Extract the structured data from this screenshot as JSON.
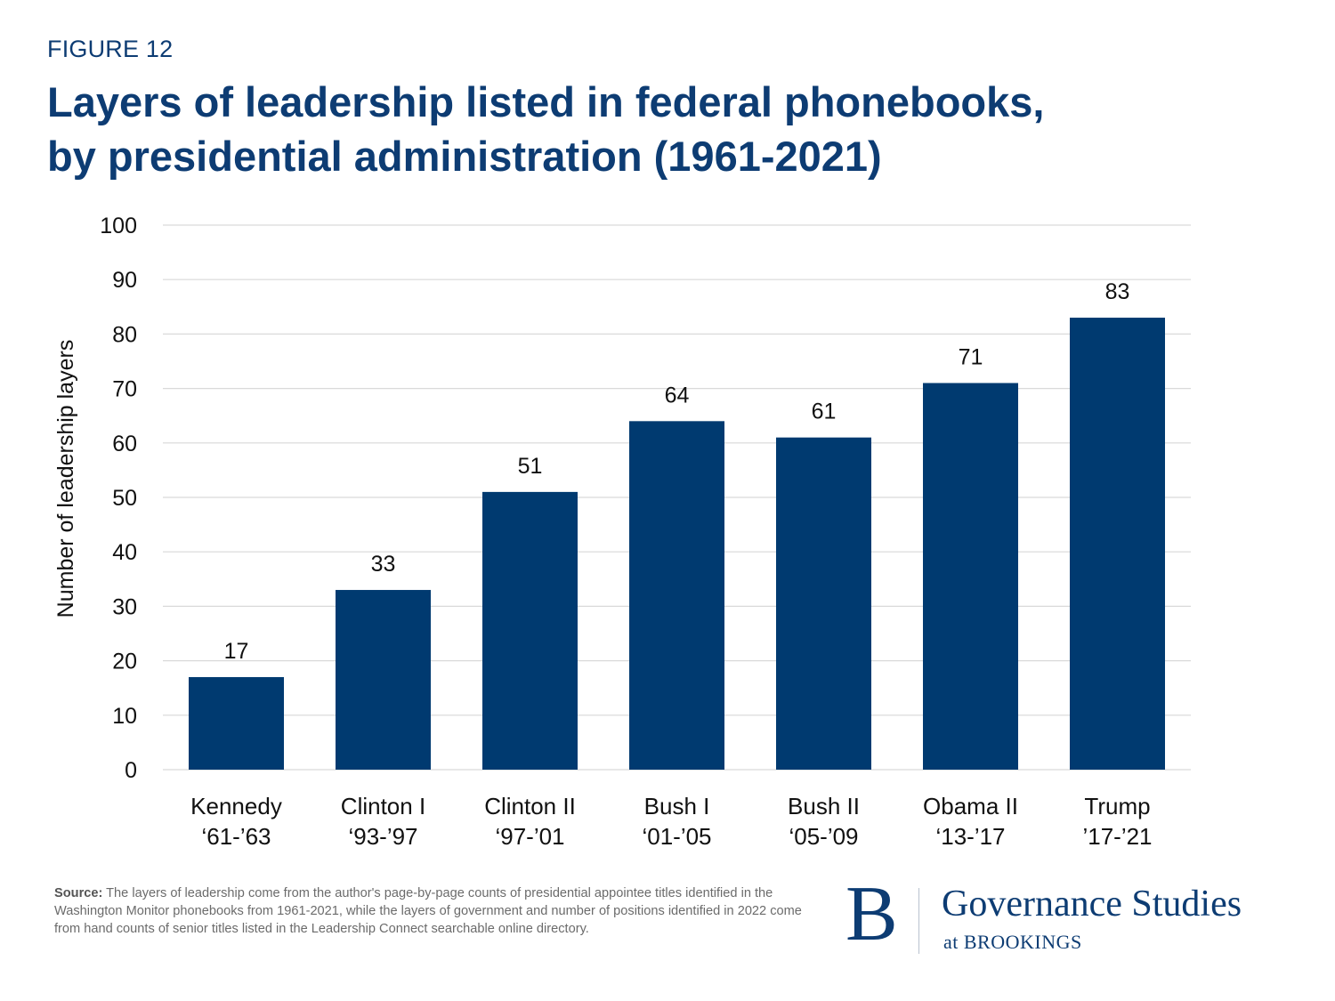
{
  "figure_label": "FIGURE 12",
  "title_line1": "Layers of leadership listed in federal phonebooks,",
  "title_line2": "by presidential administration (1961-2021)",
  "source_label": "Source:",
  "source_text": "The layers of leadership come from the author's page-by-page counts of presidential appointee titles identified in the Washington Monitor phonebooks from 1961-2021, while the layers of government and number of positions identified in 2022 come from hand counts of senior titles listed in the Leadership Connect searchable online directory.",
  "logo": {
    "mark": "B",
    "name": "Governance Studies",
    "sub": "at BROOKINGS",
    "color": "#0d3c73"
  },
  "chart_data": {
    "type": "bar",
    "title": "Layers of leadership listed in federal phonebooks, by presidential administration (1961-2021)",
    "xlabel": "",
    "ylabel": "Number of leadership layers",
    "ylim": [
      0,
      100
    ],
    "yticks": [
      0,
      10,
      20,
      30,
      40,
      50,
      60,
      70,
      80,
      90,
      100
    ],
    "grid": true,
    "legend": "none",
    "bar_color": "#003a70",
    "categories": [
      {
        "name": "Kennedy",
        "period": "‘61-’63"
      },
      {
        "name": "Clinton I",
        "period": "‘93-’97"
      },
      {
        "name": "Clinton II",
        "period": "‘97-’01"
      },
      {
        "name": "Bush I",
        "period": "‘01-’05"
      },
      {
        "name": "Bush II",
        "period": "‘05-’09"
      },
      {
        "name": "Obama II",
        "period": "‘13-’17"
      },
      {
        "name": "Trump",
        "period": "’17-’21"
      }
    ],
    "values": [
      17,
      33,
      51,
      64,
      61,
      71,
      83
    ]
  }
}
